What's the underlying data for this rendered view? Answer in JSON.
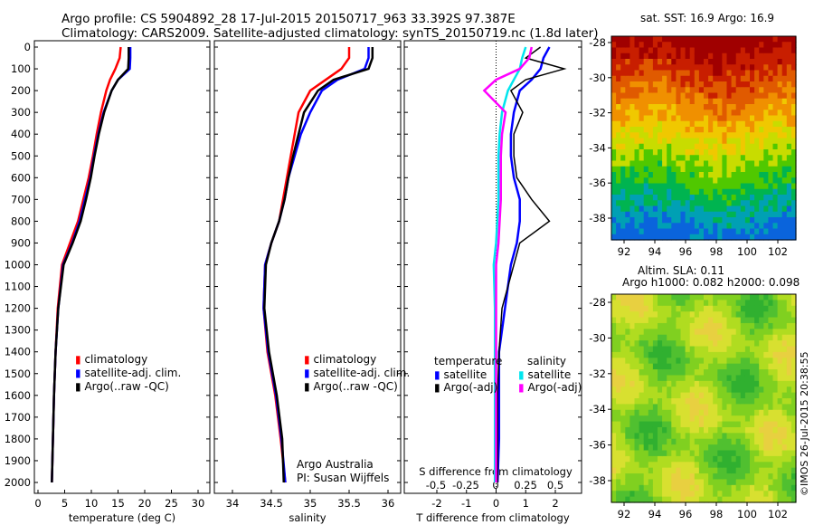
{
  "title_line1": "Argo profile: CS 5904892_28 17-Jul-2015 20150717_963 33.392S 97.387E",
  "title_line2": "Climatology: CARS2009. Satellite-adjusted climatology: synTS_20150719.nc (1.8d later)",
  "colors": {
    "climatology": "#ff0000",
    "satellite": "#0000ff",
    "argo": "#000000",
    "sal_satellite": "#00e5ee",
    "sal_argo": "#ff00ff"
  },
  "legend1": [
    "climatology",
    "satellite-adj. clim.",
    "Argo(..raw -QC)"
  ],
  "legend3": {
    "temperature": "temperature",
    "salinity": "salinity",
    "t_sat": "satellite",
    "t_argo": "Argo(-adj)",
    "s_sat": "satellite",
    "s_argo": "Argo(-adj)"
  },
  "institution": "Argo Australia",
  "pi": "PI: Susan Wijffels",
  "map_top_title": "sat. SST: 16.9 Argo: 16.9",
  "map_bottom_title1": "Altim. SLA: 0.11",
  "map_bottom_title2": "Argo h1000: 0.082 h2000: 0.098",
  "credit": "©IMOS 26-Jul-2015 20:38:55",
  "chart_data": [
    {
      "type": "line",
      "xlabel": "temperature (deg C)",
      "xlim": [
        -1,
        31
      ],
      "ylim": [
        2050,
        0
      ],
      "xticks": [
        0,
        5,
        10,
        15,
        20,
        25,
        30
      ],
      "yticks": [
        0,
        100,
        200,
        300,
        400,
        500,
        600,
        700,
        800,
        900,
        1000,
        1100,
        1200,
        1300,
        1400,
        1500,
        1600,
        1700,
        1800,
        1900,
        2000
      ],
      "depth": [
        0,
        50,
        100,
        150,
        200,
        300,
        400,
        500,
        600,
        700,
        800,
        900,
        1000,
        1200,
        1400,
        1600,
        1800,
        2000
      ],
      "series": [
        {
          "name": "climatology",
          "values": [
            15.5,
            15.3,
            14.5,
            13.5,
            12.8,
            11.8,
            11,
            10.3,
            9.5,
            8.5,
            7.5,
            6,
            4.5,
            3.7,
            3.3,
            3,
            2.8,
            2.6
          ]
        },
        {
          "name": "satellite-adj. clim.",
          "values": [
            17.3,
            17.3,
            17.2,
            15,
            13.8,
            12.3,
            11.3,
            10.5,
            9.8,
            8.8,
            7.8,
            6.4,
            4.7,
            3.8,
            3.3,
            3,
            2.8,
            2.6
          ]
        },
        {
          "name": "Argo(..raw -QC)",
          "values": [
            17,
            17,
            16.9,
            15,
            13.8,
            12.4,
            11.4,
            10.6,
            9.9,
            9,
            8,
            6.5,
            4.8,
            3.8,
            3.3,
            3,
            2.8,
            2.6
          ]
        }
      ]
    },
    {
      "type": "line",
      "xlabel": "salinity",
      "xlim": [
        33.75,
        36.1
      ],
      "ylim": [
        2050,
        0
      ],
      "xticks": [
        34,
        34.5,
        35,
        35.5,
        36
      ],
      "depth": [
        0,
        50,
        100,
        150,
        200,
        300,
        400,
        500,
        600,
        700,
        800,
        900,
        1000,
        1200,
        1400,
        1600,
        1800,
        2000
      ],
      "series": [
        {
          "name": "climatology",
          "values": [
            35.5,
            35.5,
            35.4,
            35.2,
            35.0,
            34.85,
            34.8,
            34.75,
            34.7,
            34.65,
            34.6,
            34.5,
            34.42,
            34.4,
            34.45,
            34.55,
            34.62,
            34.68
          ]
        },
        {
          "name": "satellite-adj. clim.",
          "values": [
            35.75,
            35.75,
            35.7,
            35.35,
            35.15,
            35.0,
            34.88,
            34.8,
            34.72,
            34.67,
            34.6,
            34.5,
            34.42,
            34.4,
            34.46,
            34.56,
            34.63,
            34.68
          ]
        },
        {
          "name": "Argo(..raw -QC)",
          "values": [
            35.8,
            35.8,
            35.75,
            35.3,
            35.1,
            34.92,
            34.85,
            34.78,
            34.72,
            34.67,
            34.6,
            34.5,
            34.43,
            34.41,
            34.47,
            34.57,
            34.64,
            34.66
          ]
        }
      ]
    },
    {
      "type": "line",
      "xlabel": "T difference from climatology",
      "x2label": "S difference from climatology",
      "xlim": [
        -3,
        3
      ],
      "xticks": [
        -2,
        -1,
        0,
        1,
        2
      ],
      "x2ticks": [
        "-0.5",
        "-0.25",
        "0",
        "0.25",
        "0.5"
      ],
      "depth": [
        0,
        50,
        100,
        150,
        200,
        300,
        400,
        500,
        600,
        700,
        800,
        900,
        1000,
        1200,
        1400,
        1600,
        1800,
        2000
      ],
      "series": [
        {
          "name": "temperature satellite",
          "units": "T",
          "values": [
            1.8,
            1.6,
            1.5,
            1.2,
            0.8,
            0.6,
            0.5,
            0.5,
            0.6,
            0.8,
            0.8,
            0.7,
            0.5,
            0.3,
            0.1,
            0.1,
            0.1,
            0.05
          ]
        },
        {
          "name": "temperature Argo(-adj)",
          "units": "T",
          "values": [
            1.5,
            1.0,
            2.3,
            1.0,
            0.5,
            0.9,
            0.6,
            0.6,
            0.7,
            1.2,
            1.8,
            0.8,
            0.6,
            0.2,
            0.1,
            0.05,
            0.05,
            0.05
          ]
        },
        {
          "name": "salinity satellite",
          "units": "S",
          "values": [
            0.25,
            0.22,
            0.2,
            0.15,
            0.1,
            0.05,
            0.03,
            0.02,
            0.02,
            0.02,
            0.01,
            0,
            -0.02,
            -0.01,
            -0.01,
            -0.01,
            -0.01,
            -0.01
          ]
        },
        {
          "name": "salinity Argo(-adj)",
          "units": "S",
          "values": [
            0.3,
            0.28,
            0.2,
            0,
            -0.1,
            0.08,
            0.05,
            0.04,
            0.04,
            0.04,
            0.03,
            0.02,
            0,
            0,
            0,
            0,
            0,
            0
          ]
        }
      ]
    },
    {
      "type": "heatmap",
      "title": "sat. SST",
      "xticks": [
        92,
        94,
        96,
        98,
        100,
        102
      ],
      "yticks": [
        -28,
        -30,
        -32,
        -34,
        -36,
        -38
      ]
    },
    {
      "type": "heatmap",
      "title": "SLA",
      "xticks": [
        92,
        94,
        96,
        98,
        100,
        102
      ],
      "yticks": [
        -28,
        -30,
        -32,
        -34,
        -36,
        -38
      ]
    }
  ]
}
